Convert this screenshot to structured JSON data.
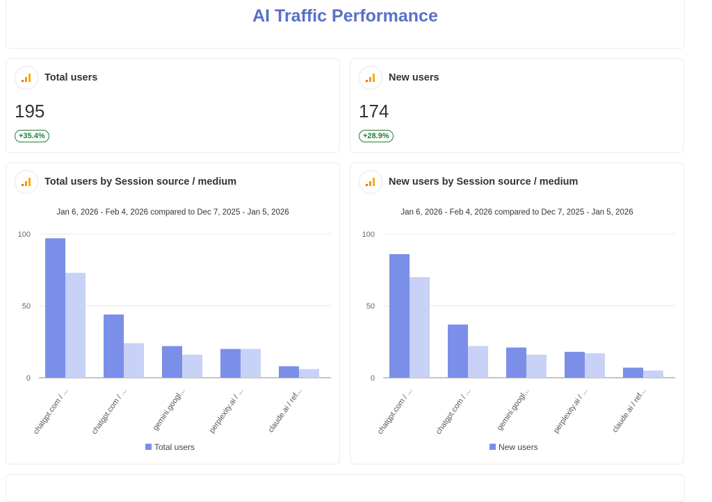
{
  "title": "AI Traffic Performance",
  "kpis": [
    {
      "label": "Total users",
      "value": "195",
      "change": "+35.4%",
      "icon": "analytics-bar-icon"
    },
    {
      "label": "New users",
      "value": "174",
      "change": "+28.9%",
      "icon": "analytics-bar-icon"
    }
  ],
  "colors": {
    "current": "#7b8fe9",
    "previous": "#c8d1f6",
    "accent": "#5a6fc8",
    "positive": "#1e7e34",
    "icon": "#f29900"
  },
  "chart_data": [
    {
      "type": "bar",
      "title": "Total users by Session source / medium",
      "subtitle": "Jan 6, 2026 - Feb 4, 2026 compared to Dec 7, 2025 - Jan 5, 2026",
      "categories": [
        "chatgpt.com / ...",
        "chatgpt.com / ...",
        "gemini.googl...",
        "perplexity.ai / ...",
        "claude.ai / ref..."
      ],
      "series": [
        {
          "name": "Total users",
          "values": [
            97,
            44,
            22,
            20,
            8
          ]
        },
        {
          "values": [
            73,
            24,
            16,
            20,
            6
          ]
        }
      ],
      "yticks": [
        "0",
        "50",
        "100"
      ],
      "ylim": [
        0,
        100
      ],
      "grid": true,
      "legend": "bottom"
    },
    {
      "type": "bar",
      "title": "New users by Session source / medium",
      "subtitle": "Jan 6, 2026 - Feb 4, 2026 compared to Dec 7, 2025 - Jan 5, 2026",
      "categories": [
        "chatgpt.com / ...",
        "chatgpt.com / ...",
        "gemini.googl...",
        "perplexity.ai / ...",
        "claude.ai / ref..."
      ],
      "series": [
        {
          "name": "New users",
          "values": [
            86,
            37,
            21,
            18,
            7
          ]
        },
        {
          "values": [
            70,
            22,
            16,
            17,
            5
          ]
        }
      ],
      "yticks": [
        "0",
        "50",
        "100"
      ],
      "ylim": [
        0,
        100
      ],
      "grid": true,
      "legend": "bottom"
    }
  ]
}
